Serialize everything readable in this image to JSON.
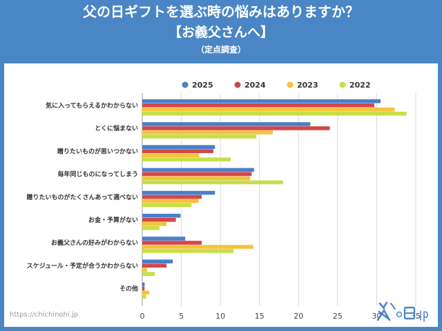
{
  "header": {
    "title": "父の日ギフトを選ぶ時の悩みはありますか？",
    "subtitle": "【お義父さんへ】",
    "note": "（定点調査）"
  },
  "footer": {
    "source_url": "https://chichinohi.jp",
    "logo_text": "父の日.jp"
  },
  "chart_data": {
    "type": "bar",
    "orientation": "horizontal",
    "categories": [
      "気に入ってもらえるかわからない",
      "とくに悩まない",
      "贈りたいものが思いつかない",
      "毎年同じものになってしまう",
      "贈りたいものがたくさんあって選べない",
      "お金・予算がない",
      "お義父さんの好みがわからない",
      "スケジュール・予定が合うかわからない",
      "その他"
    ],
    "series": [
      {
        "name": "2025",
        "color": "#4a7fc9",
        "values": [
          30.5,
          21.5,
          9.3,
          14.3,
          9.3,
          4.9,
          5.5,
          3.9,
          0.3
        ]
      },
      {
        "name": "2024",
        "color": "#d2474a",
        "values": [
          29.7,
          24.0,
          9.1,
          14.0,
          7.6,
          4.3,
          7.6,
          3.1,
          0.3
        ]
      },
      {
        "name": "2023",
        "color": "#f5c33b",
        "values": [
          32.3,
          16.7,
          7.3,
          13.8,
          7.2,
          3.1,
          14.2,
          0.6,
          0.9
        ]
      },
      {
        "name": "2022",
        "color": "#c5e048",
        "values": [
          33.8,
          14.6,
          11.3,
          18.0,
          6.3,
          2.2,
          11.7,
          1.6,
          0.5
        ]
      }
    ],
    "xlim": [
      0,
      35
    ],
    "xticks": [
      0,
      5,
      10,
      15,
      20,
      25,
      30,
      35
    ],
    "grid": true,
    "legend_position": "top"
  }
}
